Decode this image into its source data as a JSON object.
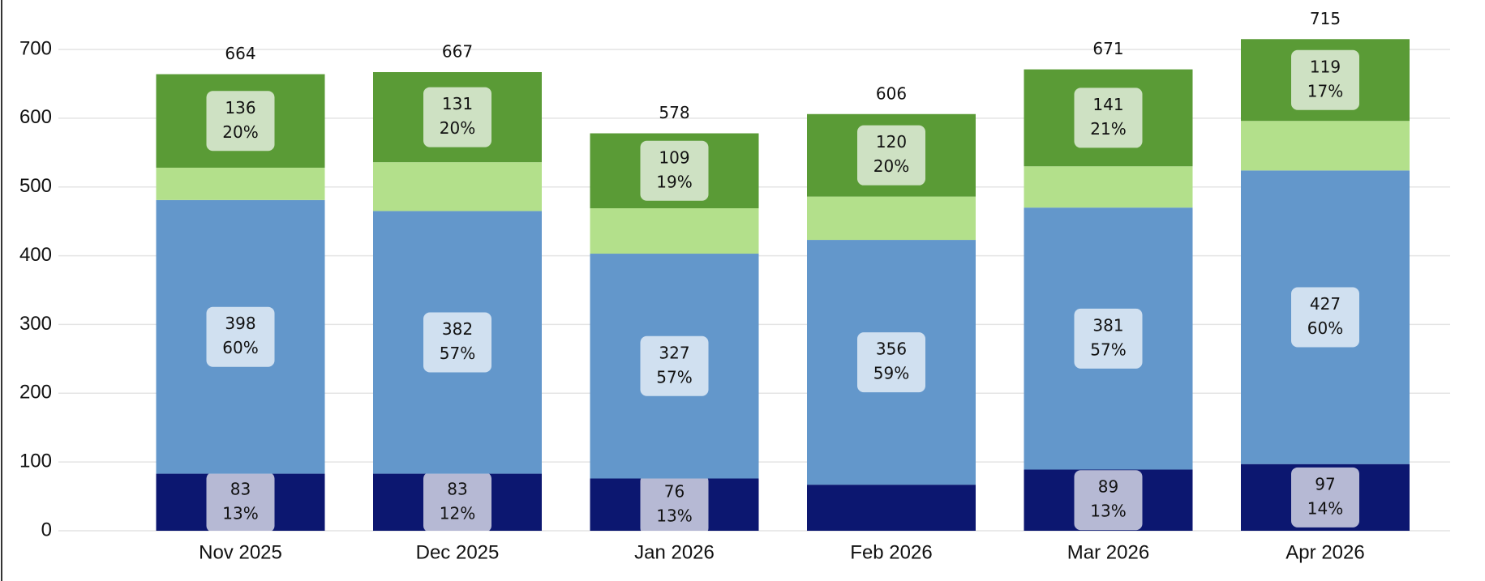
{
  "chart_data": {
    "type": "stacked_bar",
    "categories": [
      "Nov 2025",
      "Dec 2025",
      "Jan 2026",
      "Feb 2026",
      "Mar 2026",
      "Apr 2026"
    ],
    "series": [
      {
        "color": "#0c1770",
        "values": [
          83,
          83,
          76,
          67,
          89,
          97
        ],
        "percent_labels": [
          "13%",
          "12%",
          "13%",
          null,
          "13%",
          "14%"
        ]
      },
      {
        "color": "#6397cb",
        "values": [
          398,
          382,
          327,
          356,
          381,
          427
        ],
        "percent_labels": [
          "60%",
          "57%",
          "57%",
          "59%",
          "57%",
          "60%"
        ]
      },
      {
        "color": "#b3e08b",
        "values": [
          47,
          71,
          66,
          63,
          60,
          72
        ]
      },
      {
        "color": "#5a9b36",
        "values": [
          136,
          131,
          109,
          120,
          141,
          119
        ],
        "percent_labels": [
          "20%",
          "20%",
          "19%",
          "20%",
          "21%",
          "17%"
        ]
      }
    ],
    "totals": [
      664,
      667,
      578,
      606,
      671,
      715
    ],
    "ylim": [
      0,
      700
    ],
    "yticks": [
      0,
      100,
      200,
      300,
      400,
      500,
      600,
      700
    ],
    "grid": true
  }
}
